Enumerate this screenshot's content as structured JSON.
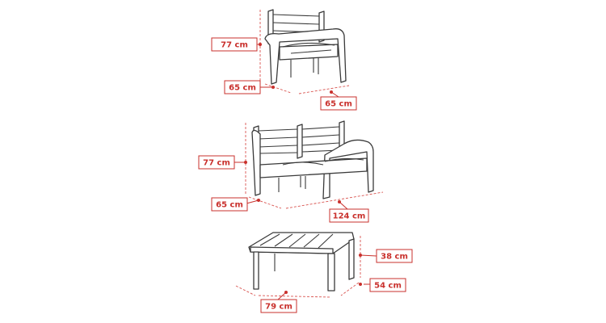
{
  "armchair": {
    "height": "77 cm",
    "depth": "65 cm",
    "width": "65 cm"
  },
  "sofa": {
    "height": "77 cm",
    "depth": "65 cm",
    "width": "124 cm"
  },
  "table": {
    "height": "38 cm",
    "depth": "54 cm",
    "width": "79 cm"
  }
}
